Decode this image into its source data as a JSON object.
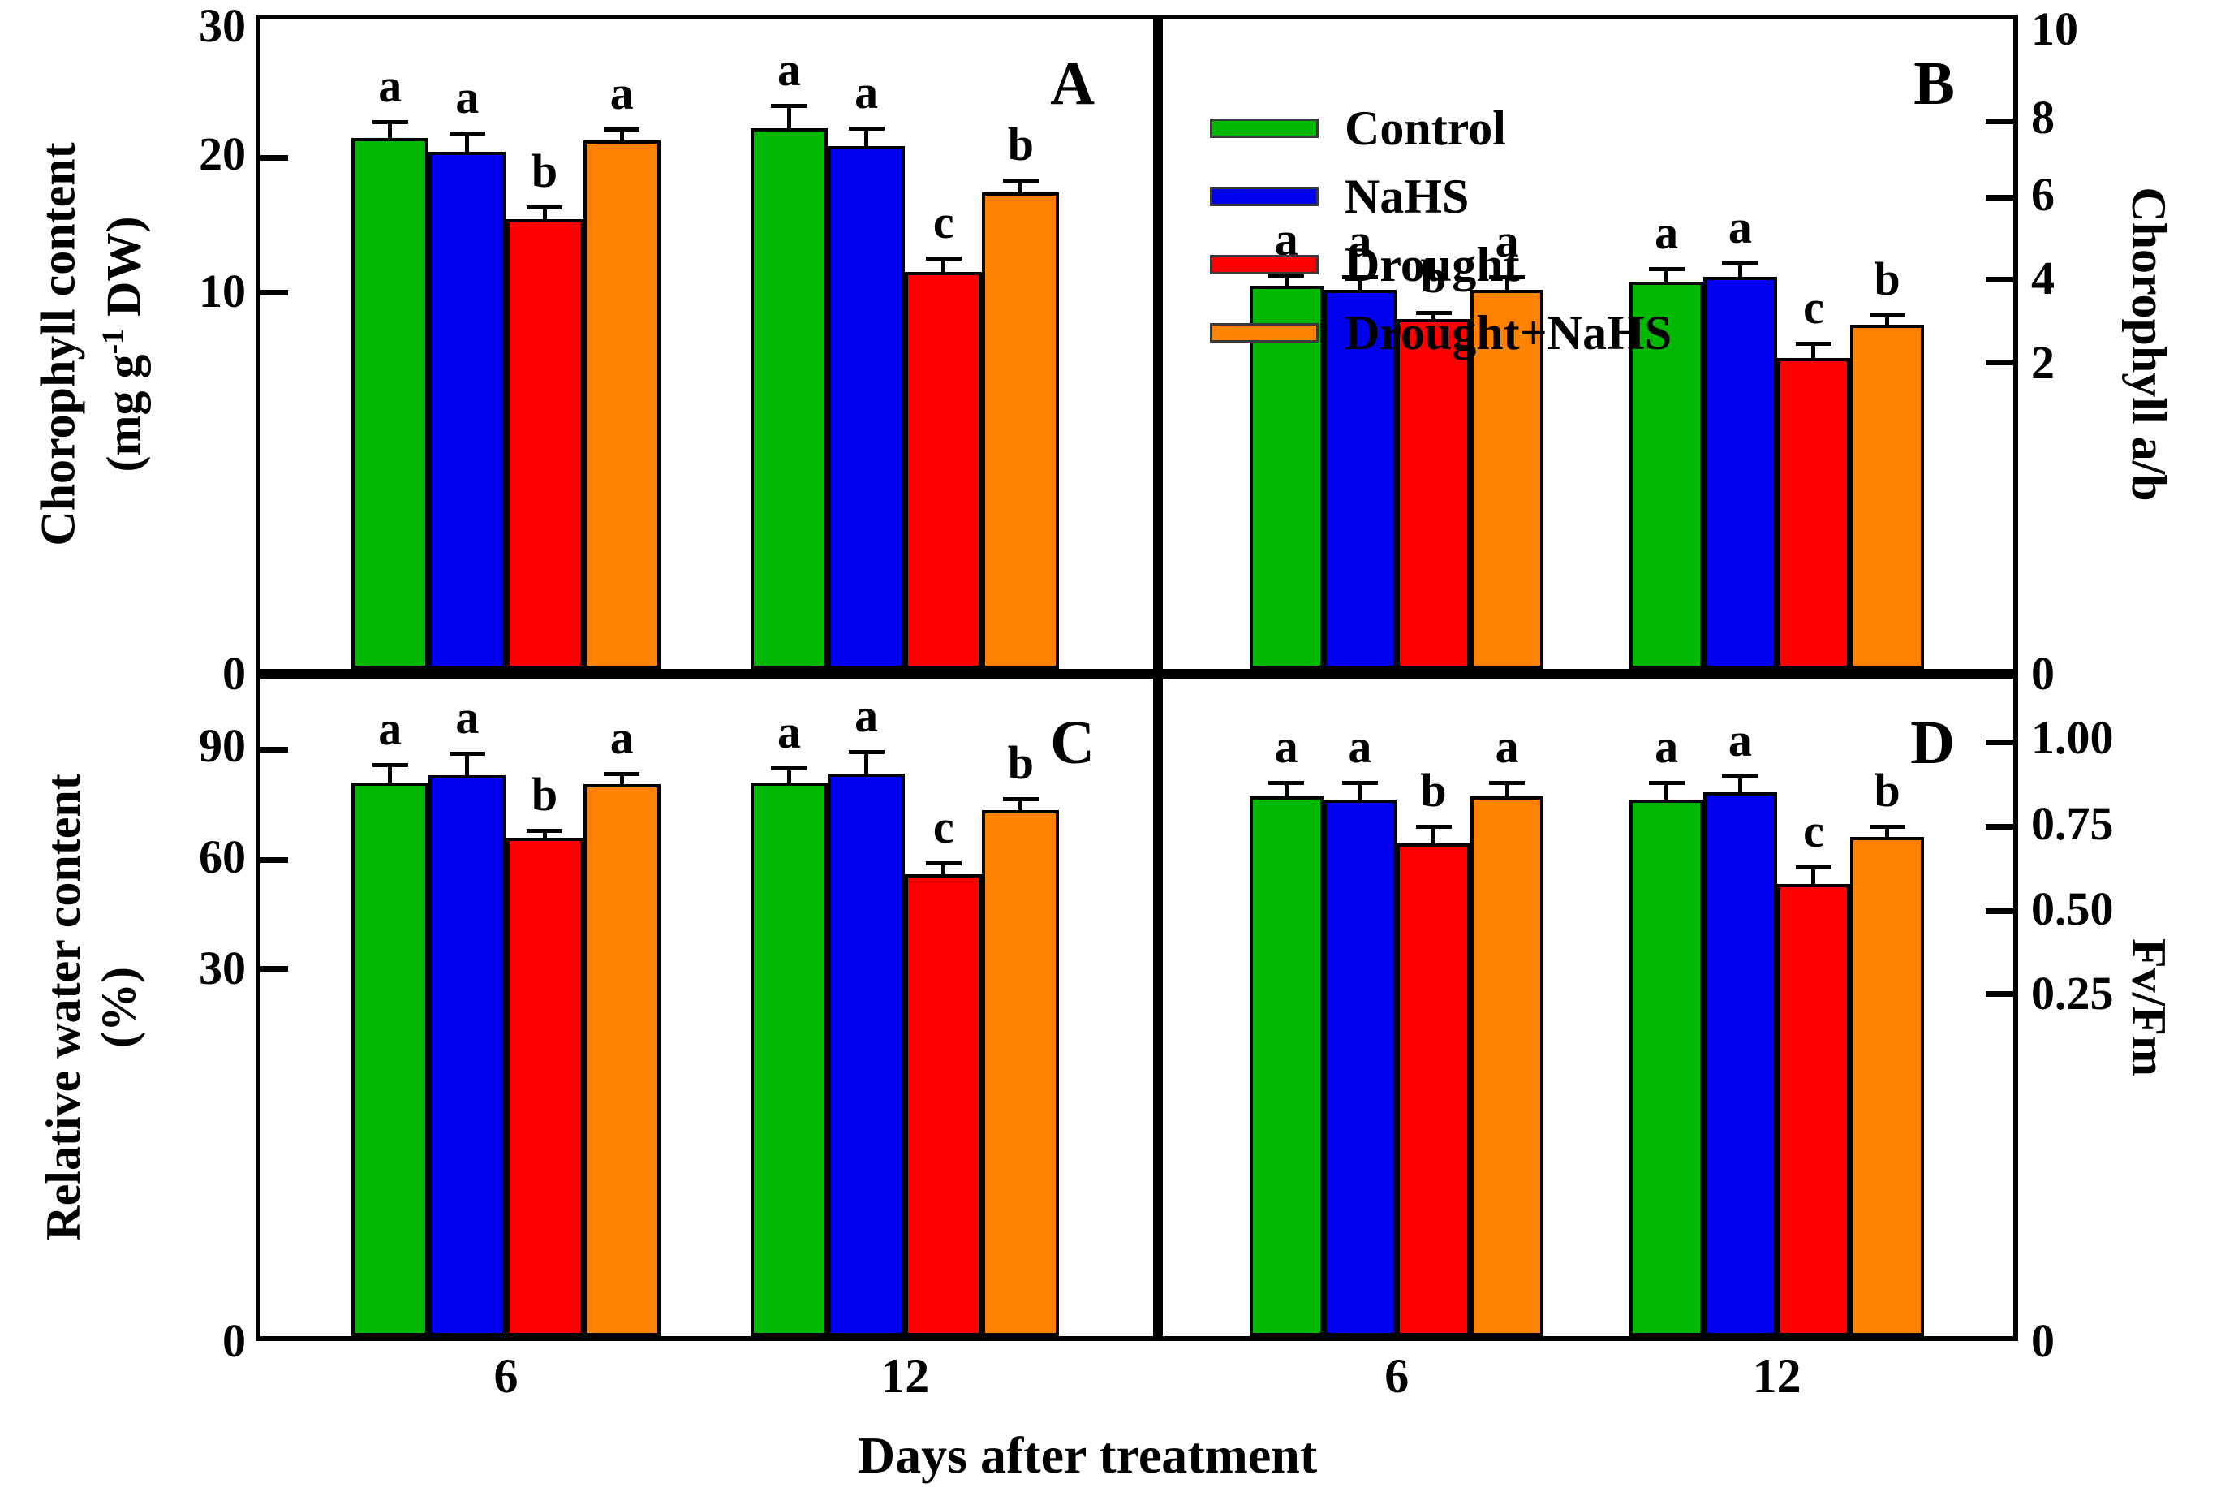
{
  "figure": {
    "xlabel": "Days after treatment",
    "axis_titles": {
      "A": {
        "line1": "Chorophyll content",
        "line2_pre": "(mg g",
        "line2_sup": "-1",
        "line2_post": " DW)"
      },
      "B": "Chorophyll a/b",
      "C": {
        "line1": "Relative water content",
        "line2": "(%)"
      },
      "D": "Fv/Fm"
    }
  },
  "legend": {
    "items": [
      {
        "label": "Control",
        "color": "#00b800"
      },
      {
        "label": "NaHS",
        "color": "#0000f0"
      },
      {
        "label": "Drought",
        "color": "#ff0000"
      },
      {
        "label": "Drought+NaHS",
        "color": "#ff8300"
      }
    ]
  },
  "chart_data": {
    "type": "bar",
    "categories": [
      "6",
      "12"
    ],
    "series": [
      "Control",
      "NaHS",
      "Drought",
      "Drought+NaHS"
    ],
    "colors": {
      "Control": "#00b800",
      "NaHS": "#0000f0",
      "Drought": "#ff0000",
      "Drought+NaHS": "#ff8300"
    },
    "xlabel": "Days after treatment",
    "legend_position": "top-left of panel B",
    "grid": false,
    "panels": [
      {
        "id": "A",
        "corner": "A",
        "ylabel": "Chorophyll content (mg g-1 DW)",
        "axis_side": "left",
        "yticks": [
          "30",
          "20",
          "10",
          "0"
        ],
        "ylim": [
          0,
          30
        ],
        "groups": [
          {
            "category": "6",
            "values": [
              21.5,
              20.4,
              15.4,
              21.3
            ],
            "errors": [
              1.3,
              1.5,
              0.9,
              0.9
            ],
            "letters": [
              "a",
              "a",
              "b",
              "a"
            ]
          },
          {
            "category": "12",
            "values": [
              22.3,
              20.9,
              11.5,
              17.4
            ],
            "errors": [
              1.8,
              1.4,
              1.0,
              0.9
            ],
            "letters": [
              "a",
              "a",
              "c",
              "b"
            ]
          }
        ]
      },
      {
        "id": "B",
        "corner": "B",
        "ylabel": "Chorophyll a/b",
        "axis_side": "right",
        "yticks": [
          "10",
          "8",
          "6",
          "4",
          "2",
          "0"
        ],
        "ylim": [
          0,
          10
        ],
        "groups": [
          {
            "category": "6",
            "values": [
              3.85,
              3.75,
              3.05,
              3.75
            ],
            "errors": [
              0.25,
              0.3,
              0.15,
              0.3
            ],
            "letters": [
              "a",
              "a",
              "b",
              "a"
            ]
          },
          {
            "category": "12",
            "values": [
              3.95,
              4.05,
              2.1,
              2.9
            ],
            "errors": [
              0.3,
              0.35,
              0.35,
              0.25
            ],
            "letters": [
              "a",
              "a",
              "c",
              "b"
            ]
          }
        ]
      },
      {
        "id": "C",
        "corner": "C",
        "ylabel": "Relative water content (%)",
        "axis_side": "left",
        "yticks": [
          "90",
          "60",
          "30",
          "0"
        ],
        "ylim": [
          0,
          110
        ],
        "groups": [
          {
            "category": "6",
            "values": [
              81.0,
              83.0,
              66.0,
              80.5
            ],
            "errors": [
              5.0,
              6.0,
              2.0,
              3.0
            ],
            "letters": [
              "a",
              "a",
              "b",
              "a"
            ]
          },
          {
            "category": "12",
            "values": [
              81.0,
              83.5,
              56.0,
              73.5
            ],
            "errors": [
              4.0,
              6.0,
              3.0,
              3.0
            ],
            "letters": [
              "a",
              "a",
              "c",
              "b"
            ]
          }
        ]
      },
      {
        "id": "D",
        "corner": "D",
        "ylabel": "Fv/Fm",
        "axis_side": "right",
        "yticks": [
          "1.00",
          "0.75",
          "0.50",
          "0.25",
          "0"
        ],
        "ylim": [
          0,
          1.1
        ],
        "groups": [
          {
            "category": "6",
            "values": [
              0.84,
              0.83,
              0.7,
              0.84
            ],
            "errors": [
              0.04,
              0.05,
              0.05,
              0.04
            ],
            "letters": [
              "a",
              "a",
              "b",
              "a"
            ]
          },
          {
            "category": "12",
            "values": [
              0.83,
              0.85,
              0.58,
              0.72
            ],
            "errors": [
              0.05,
              0.05,
              0.05,
              0.03
            ],
            "letters": [
              "a",
              "a",
              "c",
              "b"
            ]
          }
        ]
      }
    ]
  }
}
